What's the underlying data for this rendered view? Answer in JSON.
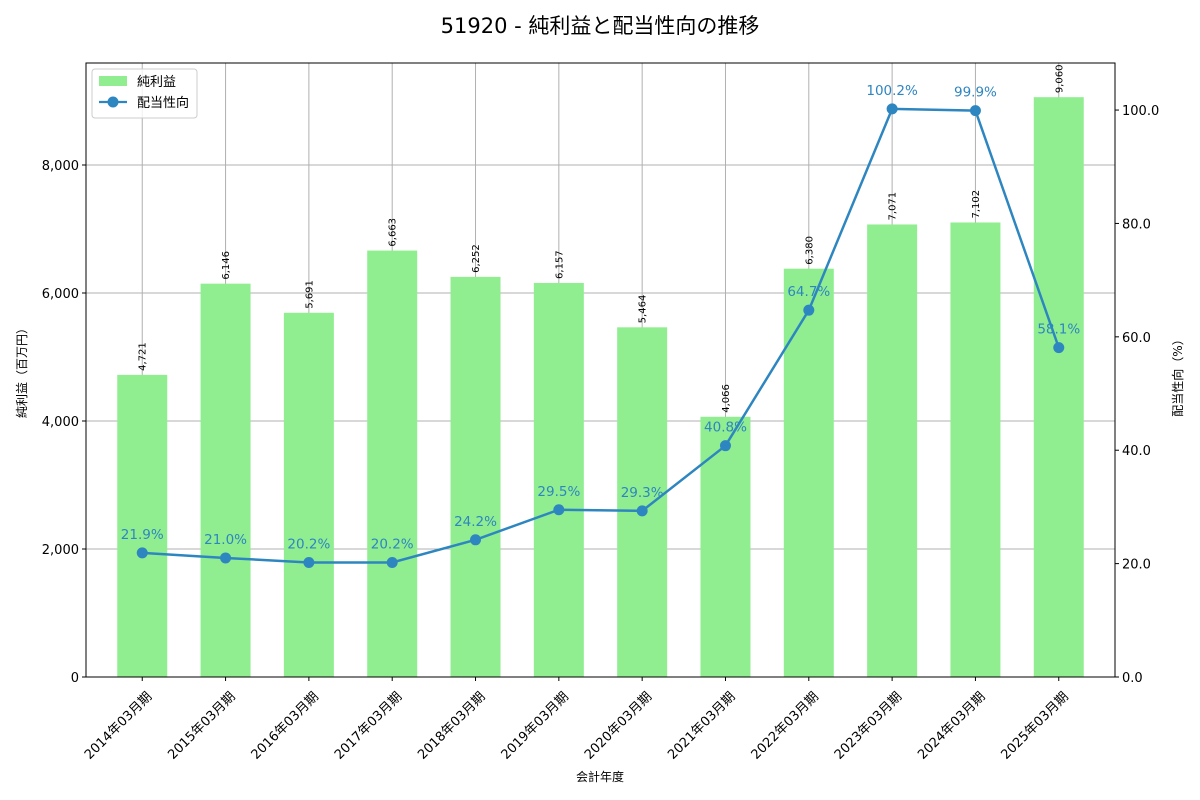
{
  "chart_data": {
    "type": "bar+line",
    "title": "51920 - 純利益と配当性向の推移",
    "xlabel": "会計年度",
    "ylabel_left": "純利益（百万円）",
    "ylabel_right": "配当性向（%）",
    "categories": [
      "2014年03月期",
      "2015年03月期",
      "2016年03月期",
      "2017年03月期",
      "2018年03月期",
      "2019年03月期",
      "2020年03月期",
      "2021年03月期",
      "2022年03月期",
      "2023年03月期",
      "2024年03月期",
      "2025年03月期"
    ],
    "series": [
      {
        "name": "純利益",
        "type": "bar",
        "axis": "left",
        "color": "#90ee90",
        "values": [
          4721,
          6146,
          5691,
          6663,
          6252,
          6157,
          5464,
          4066,
          6380,
          7071,
          7102,
          9060
        ],
        "labels": [
          "4,721",
          "6,146",
          "5,691",
          "6,663",
          "6,252",
          "6,157",
          "5,464",
          "4,066",
          "6,380",
          "7,071",
          "7,102",
          "9,060"
        ]
      },
      {
        "name": "配当性向",
        "type": "line",
        "axis": "right",
        "color": "#2e86c1",
        "values": [
          21.9,
          21.0,
          20.2,
          20.2,
          24.2,
          29.5,
          29.3,
          40.8,
          64.7,
          100.2,
          99.9,
          58.1
        ],
        "labels": [
          "21.9%",
          "21.0%",
          "20.2%",
          "20.2%",
          "24.2%",
          "29.5%",
          "29.3%",
          "40.8%",
          "64.7%",
          "100.2%",
          "99.9%",
          "58.1%"
        ]
      }
    ],
    "ylim_left": [
      0,
      9594
    ],
    "ylim_right": [
      0,
      108.3
    ],
    "yticks_left": [
      0,
      2000,
      4000,
      6000,
      8000
    ],
    "yticks_left_labels": [
      "0",
      "2,000",
      "4,000",
      "6,000",
      "8,000"
    ],
    "yticks_right": [
      0,
      20,
      40,
      60,
      80,
      100
    ],
    "yticks_right_labels": [
      "0.0",
      "20.0",
      "40.0",
      "60.0",
      "80.0",
      "100.0"
    ],
    "grid": true,
    "legend_position": "upper left"
  }
}
